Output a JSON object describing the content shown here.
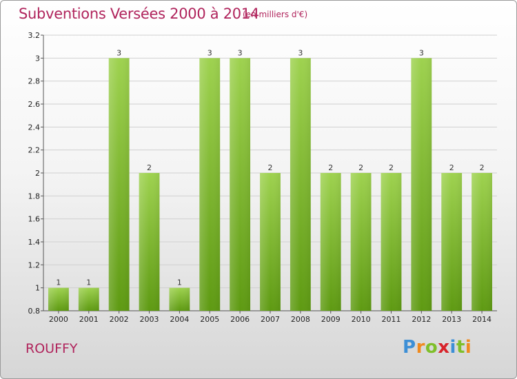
{
  "header": {
    "title": "Subventions Versées 2000 à 2014",
    "subtitle": "(en milliers d'€)"
  },
  "footer": {
    "town": "ROUFFY",
    "logo_text": "Proxiti"
  },
  "colors": {
    "bar_top": "#9ed24f",
    "bar_bottom": "#5e9a12",
    "title": "#b0245c",
    "grid": "#d0d0d0"
  },
  "chart_data": {
    "type": "bar",
    "title": "Subventions Versées 2000 à 2014",
    "subtitle": "(en milliers d'€)",
    "xlabel": "",
    "ylabel": "",
    "categories": [
      "2000",
      "2001",
      "2002",
      "2003",
      "2004",
      "2005",
      "2006",
      "2007",
      "2008",
      "2009",
      "2010",
      "2011",
      "2012",
      "2013",
      "2014"
    ],
    "values": [
      1,
      1,
      3,
      2,
      1,
      3,
      3,
      2,
      3,
      2,
      2,
      2,
      3,
      2,
      2
    ],
    "ylim": [
      0.8,
      3.2
    ],
    "yticks": [
      0.8,
      1,
      1.2,
      1.4,
      1.6,
      1.8,
      2,
      2.2,
      2.4,
      2.6,
      2.8,
      3,
      3.2
    ],
    "grid": true,
    "legend": "none"
  }
}
